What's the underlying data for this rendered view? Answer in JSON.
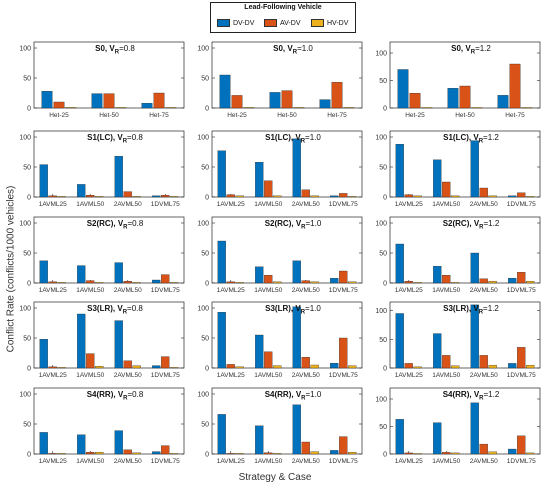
{
  "legend": {
    "title": "Lead-Following Vehicle",
    "items": [
      {
        "label": "DV-DV",
        "color": "#0072BD"
      },
      {
        "label": "AV-DV",
        "color": "#D95319"
      },
      {
        "label": "HV-DV",
        "color": "#EDB120"
      }
    ]
  },
  "ylabel": "Conflict Rate (conflicts/1000 vehicles)",
  "xlabel": "Strategy & Case",
  "chart_data": [
    {
      "type": "bar",
      "title": "S0, V_R=0.8",
      "categories": [
        "Het-25",
        "Het-50",
        "Het-75"
      ],
      "yticks": [
        0,
        50,
        100
      ],
      "ylim": [
        0,
        110
      ],
      "series": [
        {
          "name": "DV-DV",
          "values": [
            28,
            24,
            8
          ]
        },
        {
          "name": "AV-DV",
          "values": [
            10,
            24,
            25
          ]
        },
        {
          "name": "HV-DV",
          "values": [
            1,
            1,
            1
          ]
        }
      ]
    },
    {
      "type": "bar",
      "title": "S0, V_R=1.0",
      "categories": [
        "Het-25",
        "Het-50",
        "Het-75"
      ],
      "yticks": [
        0,
        50,
        100
      ],
      "ylim": [
        0,
        110
      ],
      "series": [
        {
          "name": "DV-DV",
          "values": [
            55,
            26,
            14
          ]
        },
        {
          "name": "AV-DV",
          "values": [
            21,
            29,
            43
          ]
        },
        {
          "name": "HV-DV",
          "values": [
            1,
            1,
            1
          ]
        }
      ]
    },
    {
      "type": "bar",
      "title": "S0, V_R=1.2",
      "categories": [
        "Het-25",
        "Het-50",
        "Het-75"
      ],
      "yticks": [
        0,
        50,
        100
      ],
      "ylim": [
        0,
        120
      ],
      "series": [
        {
          "name": "DV-DV",
          "values": [
            70,
            36,
            23
          ]
        },
        {
          "name": "AV-DV",
          "values": [
            27,
            40,
            80
          ]
        },
        {
          "name": "HV-DV",
          "values": [
            1,
            1,
            1
          ]
        }
      ]
    },
    {
      "type": "bar",
      "title": "S1(LC), V_R=0.8",
      "categories": [
        "1AVML25",
        "1AVML50",
        "2AVML50",
        "1DVML75"
      ],
      "yticks": [
        0,
        50,
        100
      ],
      "ylim": [
        0,
        110
      ],
      "series": [
        {
          "name": "DV-DV",
          "values": [
            54,
            21,
            68,
            2
          ]
        },
        {
          "name": "AV-DV",
          "values": [
            2,
            3,
            9,
            3
          ]
        },
        {
          "name": "HV-DV",
          "values": [
            1,
            1,
            1,
            1
          ]
        }
      ]
    },
    {
      "type": "bar",
      "title": "S1(LC), V_R=1.0",
      "categories": [
        "1AVML25",
        "1AVML50",
        "2AVML50",
        "1DVML75"
      ],
      "yticks": [
        0,
        50,
        100
      ],
      "ylim": [
        0,
        110
      ],
      "series": [
        {
          "name": "DV-DV",
          "values": [
            77,
            58,
            97,
            2
          ]
        },
        {
          "name": "AV-DV",
          "values": [
            4,
            27,
            12,
            6
          ]
        },
        {
          "name": "HV-DV",
          "values": [
            2,
            2,
            2,
            1
          ]
        }
      ]
    },
    {
      "type": "bar",
      "title": "S1(LC), V_R=1.2",
      "categories": [
        "1AVML25",
        "1AVML50",
        "2AVML50",
        "1DVML75"
      ],
      "yticks": [
        0,
        50,
        100
      ],
      "ylim": [
        0,
        110
      ],
      "series": [
        {
          "name": "DV-DV",
          "values": [
            88,
            62,
            94,
            2
          ]
        },
        {
          "name": "AV-DV",
          "values": [
            4,
            25,
            15,
            7
          ]
        },
        {
          "name": "HV-DV",
          "values": [
            2,
            2,
            2,
            1
          ]
        }
      ]
    },
    {
      "type": "bar",
      "title": "S2(RC), V_R=0.8",
      "categories": [
        "1AVML25",
        "1AVML50",
        "2AVML50",
        "1DVML75"
      ],
      "yticks": [
        0,
        50,
        100
      ],
      "ylim": [
        0,
        110
      ],
      "series": [
        {
          "name": "DV-DV",
          "values": [
            37,
            29,
            34,
            5
          ]
        },
        {
          "name": "AV-DV",
          "values": [
            2,
            4,
            3,
            14
          ]
        },
        {
          "name": "HV-DV",
          "values": [
            1,
            1,
            1,
            1
          ]
        }
      ]
    },
    {
      "type": "bar",
      "title": "S2(RC), V_R=1.0",
      "categories": [
        "1AVML25",
        "1AVML50",
        "2AVML50",
        "1DVML75"
      ],
      "yticks": [
        0,
        50,
        100
      ],
      "ylim": [
        0,
        110
      ],
      "series": [
        {
          "name": "DV-DV",
          "values": [
            70,
            27,
            37,
            8
          ]
        },
        {
          "name": "AV-DV",
          "values": [
            2,
            13,
            4,
            20
          ]
        },
        {
          "name": "HV-DV",
          "values": [
            1,
            2,
            2,
            2
          ]
        }
      ]
    },
    {
      "type": "bar",
      "title": "S2(RC), V_R=1.2",
      "categories": [
        "1AVML25",
        "1AVML50",
        "2AVML50",
        "1DVML75"
      ],
      "yticks": [
        0,
        50,
        100
      ],
      "ylim": [
        0,
        110
      ],
      "series": [
        {
          "name": "DV-DV",
          "values": [
            65,
            28,
            50,
            8
          ]
        },
        {
          "name": "AV-DV",
          "values": [
            3,
            13,
            7,
            18
          ]
        },
        {
          "name": "HV-DV",
          "values": [
            1,
            1,
            3,
            3
          ]
        }
      ]
    },
    {
      "type": "bar",
      "title": "S3(LR), V_R=0.8",
      "categories": [
        "1AVML25",
        "1AVML50",
        "2AVML50",
        "1DVML75"
      ],
      "yticks": [
        0,
        50,
        100
      ],
      "ylim": [
        0,
        110
      ],
      "series": [
        {
          "name": "DV-DV",
          "values": [
            48,
            90,
            79,
            4
          ]
        },
        {
          "name": "AV-DV",
          "values": [
            2,
            24,
            12,
            19
          ]
        },
        {
          "name": "HV-DV",
          "values": [
            1,
            3,
            4,
            1
          ]
        }
      ]
    },
    {
      "type": "bar",
      "title": "S3(LR), V_R=1.0",
      "categories": [
        "1AVML25",
        "1AVML50",
        "2AVML50",
        "1DVML75"
      ],
      "yticks": [
        0,
        50,
        100
      ],
      "ylim": [
        0,
        110
      ],
      "series": [
        {
          "name": "DV-DV",
          "values": [
            93,
            55,
            102,
            8
          ]
        },
        {
          "name": "AV-DV",
          "values": [
            6,
            27,
            18,
            50
          ]
        },
        {
          "name": "HV-DV",
          "values": [
            2,
            4,
            5,
            4
          ]
        }
      ]
    },
    {
      "type": "bar",
      "title": "S3(LR), V_R=1.2",
      "categories": [
        "1AVML25",
        "1AVML50",
        "2AVML50",
        "1DVML75"
      ],
      "yticks": [
        0,
        50,
        100
      ],
      "ylim": [
        0,
        115
      ],
      "series": [
        {
          "name": "DV-DV",
          "values": [
            95,
            60,
            110,
            8
          ]
        },
        {
          "name": "AV-DV",
          "values": [
            8,
            22,
            22,
            36
          ]
        },
        {
          "name": "HV-DV",
          "values": [
            2,
            4,
            5,
            5
          ]
        }
      ]
    },
    {
      "type": "bar",
      "title": "S4(RR), V_R=0.8",
      "categories": [
        "1AVML25",
        "1AVML50",
        "2AVML50",
        "1DVML75"
      ],
      "yticks": [
        0,
        50,
        100
      ],
      "ylim": [
        0,
        110
      ],
      "series": [
        {
          "name": "DV-DV",
          "values": [
            36,
            32,
            39,
            4
          ]
        },
        {
          "name": "AV-DV",
          "values": [
            1,
            3,
            7,
            14
          ]
        },
        {
          "name": "HV-DV",
          "values": [
            1,
            3,
            2,
            1
          ]
        }
      ]
    },
    {
      "type": "bar",
      "title": "S4(RR), V_R=1.0",
      "categories": [
        "1AVML25",
        "1AVML50",
        "2AVML50",
        "1DVML75"
      ],
      "yticks": [
        0,
        50,
        100
      ],
      "ylim": [
        0,
        110
      ],
      "series": [
        {
          "name": "DV-DV",
          "values": [
            66,
            47,
            82,
            6
          ]
        },
        {
          "name": "AV-DV",
          "values": [
            1,
            2,
            20,
            29
          ]
        },
        {
          "name": "HV-DV",
          "values": [
            1,
            1,
            4,
            3
          ]
        }
      ]
    },
    {
      "type": "bar",
      "title": "S4(RR), V_R=1.2",
      "categories": [
        "1AVML25",
        "1AVML50",
        "2AVML50",
        "1DVML75"
      ],
      "yticks": [
        0,
        50,
        100
      ],
      "ylim": [
        0,
        120
      ],
      "series": [
        {
          "name": "DV-DV",
          "values": [
            63,
            57,
            93,
            9
          ]
        },
        {
          "name": "AV-DV",
          "values": [
            2,
            3,
            18,
            33
          ]
        },
        {
          "name": "HV-DV",
          "values": [
            1,
            2,
            4,
            2
          ]
        }
      ]
    }
  ]
}
